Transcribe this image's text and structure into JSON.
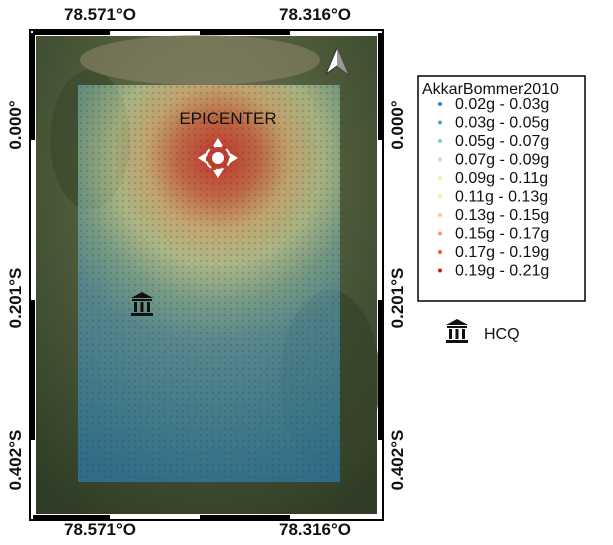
{
  "map": {
    "top_labels": [
      "78.571°O",
      "78.316°O"
    ],
    "bottom_labels": [
      "78.571°O",
      "78.316°O"
    ],
    "left_labels": [
      "0.000°",
      "0.201°S",
      "0.402°S"
    ],
    "right_labels": [
      "0.000°",
      "0.201°S",
      "0.402°S"
    ],
    "epicenter_label": "EPICENTER",
    "legend": {
      "title": "AkkarBommer2010",
      "items": [
        {
          "label": "0.02g - 0.03g",
          "color": "#2b83ba"
        },
        {
          "label": "0.03g - 0.05g",
          "color": "#5aa3c0"
        },
        {
          "label": "0.05g - 0.07g",
          "color": "#8cc6bb"
        },
        {
          "label": "0.07g - 0.09g",
          "color": "#bfe3b0"
        },
        {
          "label": "0.09g - 0.11g",
          "color": "#e6f3b4"
        },
        {
          "label": "0.11g - 0.13g",
          "color": "#fbeaa6"
        },
        {
          "label": "0.13g - 0.15g",
          "color": "#fdc983"
        },
        {
          "label": "0.15g - 0.17g",
          "color": "#f99d5a"
        },
        {
          "label": "0.17g - 0.19g",
          "color": "#e8603b"
        },
        {
          "label": "0.19g - 0.21g",
          "color": "#d7191c"
        }
      ]
    },
    "site_label": "HCQ"
  }
}
